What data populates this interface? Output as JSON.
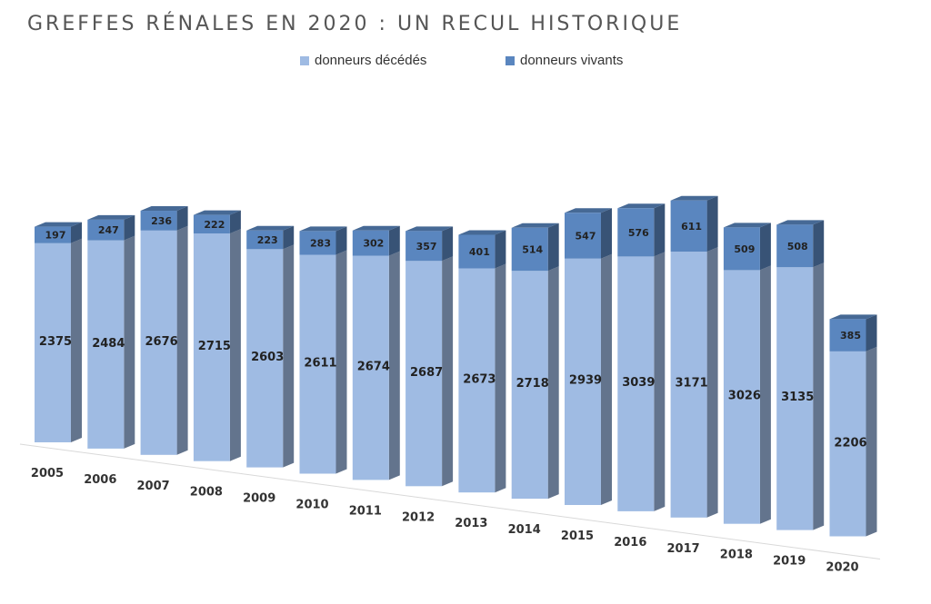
{
  "chart_data": {
    "type": "bar",
    "stacked": true,
    "three_d": true,
    "title": "GREFFES RÉNALES EN 2020 : UN RECUL HISTORIQUE",
    "categories": [
      "2005",
      "2006",
      "2007",
      "2008",
      "2009",
      "2010",
      "2011",
      "2012",
      "2013",
      "2014",
      "2015",
      "2016",
      "2017",
      "2018",
      "2019",
      "2020"
    ],
    "series": [
      {
        "name": "donneurs décédés",
        "color": "#9fbbe3",
        "values": [
          2375,
          2484,
          2676,
          2715,
          2603,
          2611,
          2674,
          2687,
          2673,
          2718,
          2939,
          3039,
          3171,
          3026,
          3135,
          2206
        ]
      },
      {
        "name": "donneurs vivants",
        "color": "#5a86bf",
        "values": [
          197,
          247,
          236,
          222,
          223,
          283,
          302,
          357,
          401,
          514,
          547,
          576,
          611,
          509,
          508,
          385
        ]
      }
    ],
    "legend_position": "top",
    "grid": false
  }
}
